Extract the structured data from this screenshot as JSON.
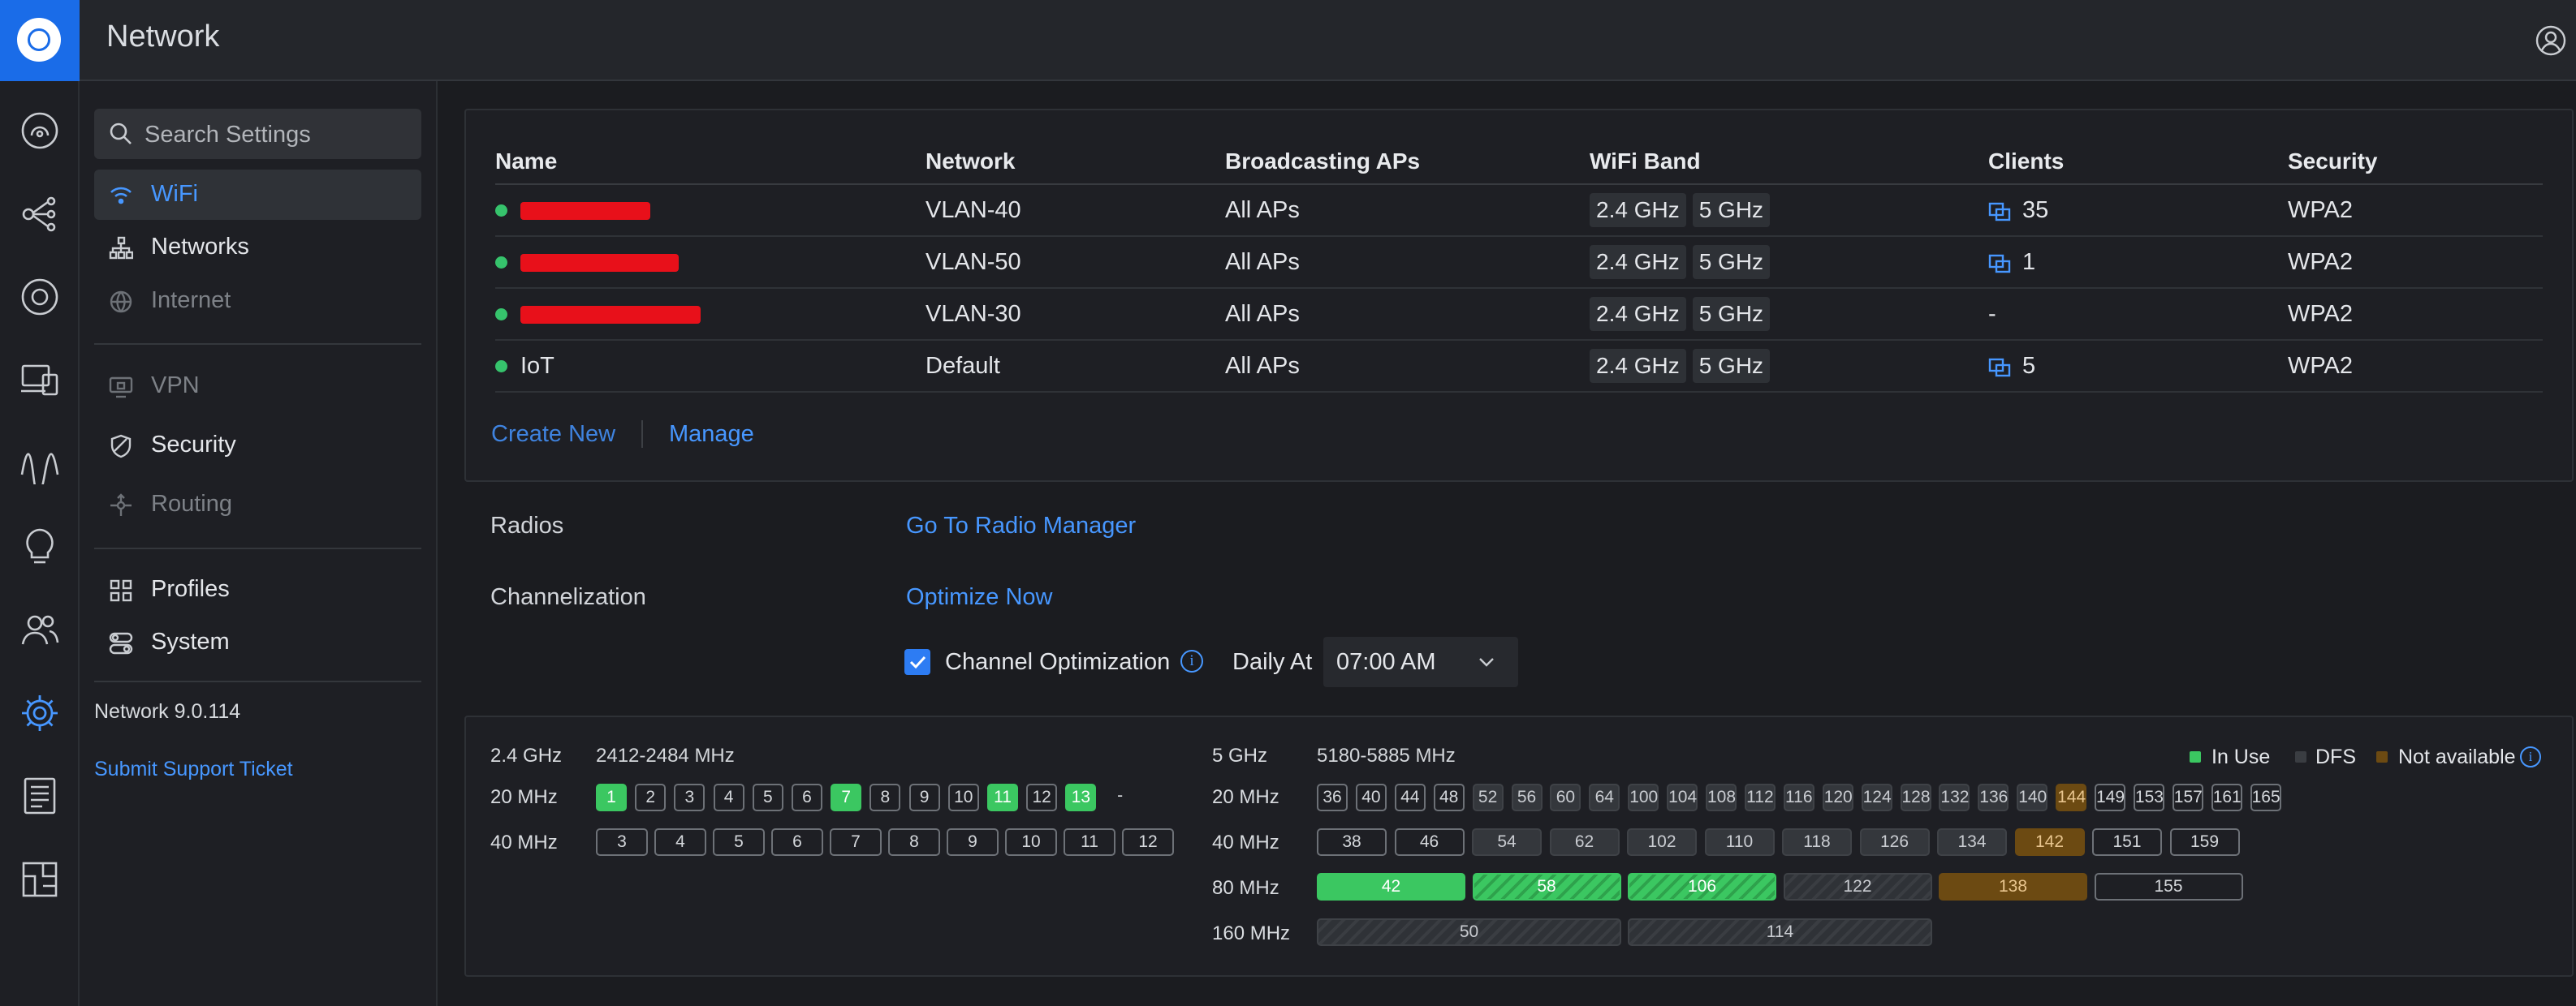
{
  "app": {
    "title": "Network"
  },
  "search": {
    "placeholder": "Search Settings"
  },
  "nav": {
    "wifi": "WiFi",
    "networks": "Networks",
    "internet": "Internet",
    "vpn": "VPN",
    "security": "Security",
    "routing": "Routing",
    "profiles": "Profiles",
    "system": "System"
  },
  "footer": {
    "version": "Network 9.0.114",
    "support": "Submit Support Ticket"
  },
  "wifi_table": {
    "headers": [
      "Name",
      "Network",
      "Broadcasting APs",
      "WiFi Band",
      "Clients",
      "Security"
    ],
    "rows": [
      {
        "name": "",
        "network": "VLAN-40",
        "aps": "All APs",
        "band1": "2.4 GHz",
        "band2": "5 GHz",
        "clients": "35",
        "security": "WPA2"
      },
      {
        "name": "",
        "network": "VLAN-50",
        "aps": "All APs",
        "band1": "2.4 GHz",
        "band2": "5 GHz",
        "clients": "1",
        "security": "WPA2"
      },
      {
        "name": "",
        "network": "VLAN-30",
        "aps": "All APs",
        "band1": "2.4 GHz",
        "band2": "5 GHz",
        "clients": "-",
        "security": "WPA2"
      },
      {
        "name": "IoT",
        "network": "Default",
        "aps": "All APs",
        "band1": "2.4 GHz",
        "band2": "5 GHz",
        "clients": "5",
        "security": "WPA2"
      }
    ],
    "create_new": "Create New",
    "manage": "Manage"
  },
  "radios": {
    "label": "Radios",
    "link": "Go To Radio Manager"
  },
  "channelization": {
    "label": "Channelization",
    "optimize": "Optimize Now",
    "checkbox_label": "Channel Optimization",
    "checked": true,
    "daily_at": "Daily At",
    "time": "07:00 AM",
    "info_glyph": "i"
  },
  "channels_24": {
    "band": "2.4 GHz",
    "range": "2412-2484 MHz",
    "w20": "20 MHz",
    "w40": "40 MHz",
    "ch20": [
      "1",
      "2",
      "3",
      "4",
      "5",
      "6",
      "7",
      "8",
      "9",
      "10",
      "11",
      "12",
      "13",
      "-"
    ],
    "ch40": [
      "3",
      "4",
      "5",
      "6",
      "7",
      "8",
      "9",
      "10",
      "11",
      "12"
    ]
  },
  "channels_5": {
    "band": "5 GHz",
    "range": "5180-5885 MHz",
    "w20": "20 MHz",
    "w40": "40 MHz",
    "w80": "80 MHz",
    "w160": "160 MHz",
    "ch20": [
      "36",
      "40",
      "44",
      "48",
      "52",
      "56",
      "60",
      "64",
      "100",
      "104",
      "108",
      "112",
      "116",
      "120",
      "124",
      "128",
      "132",
      "136",
      "140",
      "144",
      "149",
      "153",
      "157",
      "161",
      "165"
    ],
    "ch40": [
      "38",
      "46",
      "54",
      "62",
      "102",
      "110",
      "118",
      "126",
      "134",
      "142",
      "151",
      "159"
    ],
    "ch80": [
      "42",
      "58",
      "106",
      "122",
      "138",
      "155"
    ],
    "ch160": [
      "50",
      "114"
    ]
  },
  "legend": {
    "in_use": "In Use",
    "dfs": "DFS",
    "not_available": "Not available",
    "info_glyph": "i"
  },
  "colors": {
    "accent": "#4797ff",
    "in_use": "#3bc761",
    "not_available": "#6c4a12",
    "brand": "#1a6ce8"
  }
}
